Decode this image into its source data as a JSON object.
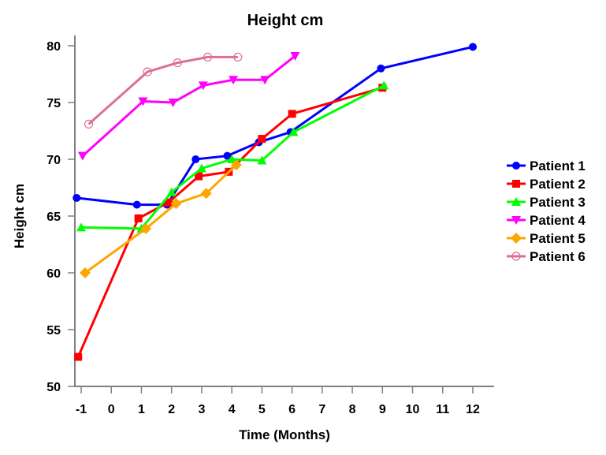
{
  "chart_data": {
    "type": "line",
    "title": "Height  cm",
    "xlabel": "Time (Months)",
    "ylabel": "Height  cm",
    "xlim": [
      -1.15,
      12.7
    ],
    "ylim": [
      50,
      80.8
    ],
    "xticks": [
      -1,
      0,
      1,
      2,
      3,
      4,
      5,
      6,
      7,
      8,
      9,
      10,
      11,
      12
    ],
    "yticks": [
      50,
      55,
      60,
      65,
      70,
      75,
      80
    ],
    "grid": false,
    "legend_position": "right",
    "series": [
      {
        "name": "Patient 1",
        "color": "#0000ff",
        "marker": "circle",
        "points": [
          [
            -1.15,
            66.6
          ],
          [
            0.85,
            66.0
          ],
          [
            1.85,
            66.0
          ],
          [
            2.8,
            70.0
          ],
          [
            3.85,
            70.3
          ],
          [
            4.9,
            71.5
          ],
          [
            5.95,
            72.4
          ],
          [
            8.95,
            78.0
          ],
          [
            12.0,
            79.9
          ]
        ]
      },
      {
        "name": "Patient 2",
        "color": "#ff0000",
        "marker": "square",
        "points": [
          [
            -1.1,
            52.6
          ],
          [
            0.9,
            64.8
          ],
          [
            1.9,
            66.2
          ],
          [
            2.9,
            68.5
          ],
          [
            3.9,
            68.9
          ],
          [
            5.0,
            71.8
          ],
          [
            6.0,
            74.0
          ],
          [
            9.0,
            76.3
          ]
        ]
      },
      {
        "name": "Patient 3",
        "color": "#00ff00",
        "marker": "triangle-up",
        "points": [
          [
            -1.0,
            64.0
          ],
          [
            1.0,
            63.9
          ],
          [
            2.0,
            67.1
          ],
          [
            3.0,
            69.2
          ],
          [
            4.0,
            70.0
          ],
          [
            5.0,
            69.9
          ],
          [
            6.05,
            72.4
          ],
          [
            9.05,
            76.5
          ]
        ]
      },
      {
        "name": "Patient 4",
        "color": "#ff00ff",
        "marker": "triangle-down",
        "points": [
          [
            -0.95,
            70.3
          ],
          [
            1.05,
            75.1
          ],
          [
            2.05,
            75.0
          ],
          [
            3.05,
            76.5
          ],
          [
            4.05,
            77.0
          ],
          [
            5.1,
            77.0
          ],
          [
            6.1,
            79.1
          ]
        ]
      },
      {
        "name": "Patient 5",
        "color": "#ffa500",
        "marker": "diamond",
        "points": [
          [
            -0.87,
            60.0
          ],
          [
            1.15,
            63.9
          ],
          [
            2.15,
            66.1
          ],
          [
            3.15,
            67.0
          ],
          [
            4.15,
            69.5
          ]
        ]
      },
      {
        "name": "Patient 6",
        "color": "#db7093",
        "marker": "open-circle",
        "points": [
          [
            -0.75,
            73.1
          ],
          [
            1.2,
            77.7
          ],
          [
            2.2,
            78.5
          ],
          [
            3.2,
            79.0
          ],
          [
            4.2,
            79.0
          ]
        ]
      }
    ]
  }
}
